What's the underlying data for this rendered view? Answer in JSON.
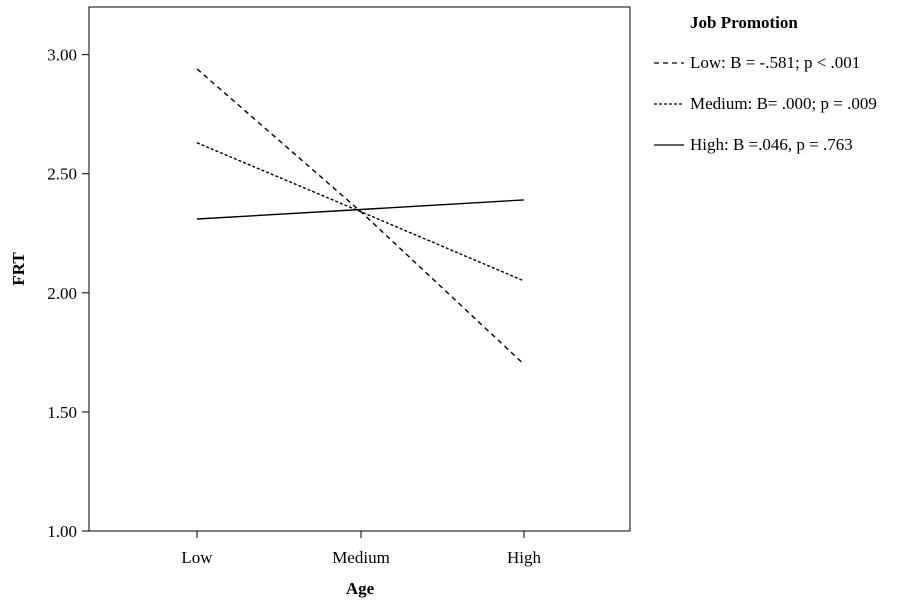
{
  "chart_data": {
    "type": "line",
    "xlabel": "Age",
    "ylabel": "FRT",
    "categories": [
      "Low",
      "Medium",
      "High"
    ],
    "ylim": [
      1.0,
      3.2
    ],
    "yticks": [
      "1.00",
      "1.50",
      "2.00",
      "2.50",
      "3.00"
    ],
    "ytick_values": [
      1.0,
      1.5,
      2.0,
      2.5,
      3.0
    ],
    "grid": false,
    "legend": {
      "title": "Job Promotion",
      "placement": "right"
    },
    "series": [
      {
        "name": "Low: B = -.581; p < .001",
        "values": [
          2.94,
          2.34,
          1.7
        ],
        "style": "dashed"
      },
      {
        "name": "Medium: B= .000; p = .009",
        "values": [
          2.63,
          2.34,
          2.05
        ],
        "style": "dotted"
      },
      {
        "name": "High: B =.046, p = .763",
        "values": [
          2.31,
          2.35,
          2.39
        ],
        "style": "solid"
      }
    ]
  }
}
